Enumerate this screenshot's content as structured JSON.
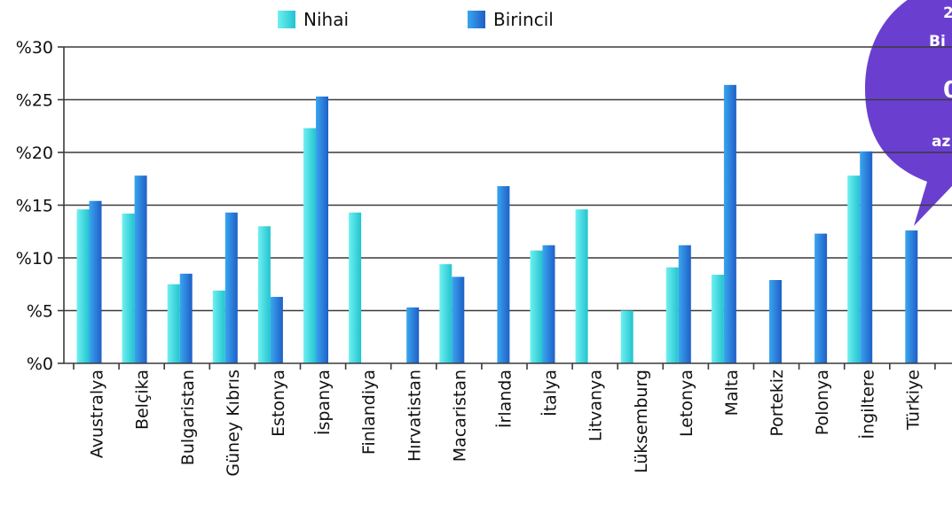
{
  "chart_data": {
    "type": "bar",
    "categories": [
      "Avustralya",
      "Belçika",
      "Bulgaristan",
      "Güney Kıbrıs",
      "Estonya",
      "İspanya",
      "Finlandiya",
      "Hırvatistan",
      "Macaristan",
      "İrlanda",
      "İtalya",
      "Litvanya",
      "Lüksemburg",
      "Letonya",
      "Malta",
      "Portekiz",
      "Polonya",
      "İngiltere",
      "Türkiye"
    ],
    "highlight_category": "Türkiye",
    "series": [
      {
        "name": "Nihai",
        "color": "#3fd9dc",
        "values": [
          14.6,
          14.2,
          7.5,
          6.9,
          13.0,
          22.3,
          14.3,
          null,
          9.4,
          null,
          10.7,
          14.6,
          5.0,
          9.1,
          8.4,
          null,
          null,
          17.8,
          null
        ]
      },
      {
        "name": "Birincil",
        "color": "#2b86dd",
        "values": [
          15.4,
          17.8,
          8.5,
          14.3,
          6.3,
          25.3,
          null,
          5.3,
          8.2,
          16.8,
          11.2,
          null,
          null,
          11.2,
          26.4,
          7.9,
          12.3,
          20.1,
          12.6
        ]
      }
    ],
    "ylim": [
      0,
      30
    ],
    "yticks": [
      0,
      5,
      10,
      15,
      20,
      25,
      30
    ],
    "ytick_labels": [
      "%0",
      "%5",
      "%10",
      "%15",
      "%20",
      "%25",
      "%30"
    ],
    "grid": true,
    "legend_position": "top-center",
    "callout": {
      "color": "#6a3fd0",
      "text_lines": [
        "2",
        "Bi",
        "",
        "0",
        "az"
      ]
    }
  }
}
